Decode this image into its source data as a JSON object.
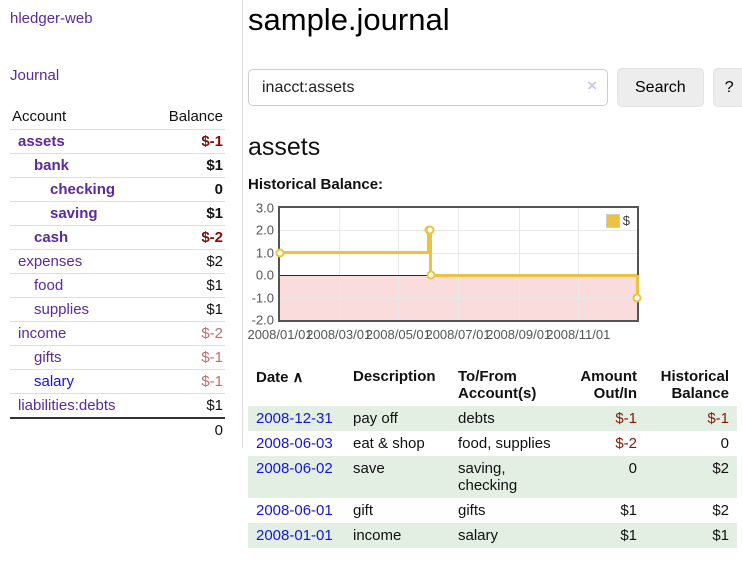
{
  "app": {
    "brand": "hledger-web"
  },
  "sidebar": {
    "journal_link": "Journal",
    "table": {
      "headers": [
        "Account",
        "Balance"
      ],
      "accounts": [
        {
          "name": "assets",
          "balance": "$-1"
        },
        {
          "name": "bank",
          "balance": "$1"
        },
        {
          "name": "checking",
          "balance": "0"
        },
        {
          "name": "saving",
          "balance": "$1"
        },
        {
          "name": "cash",
          "balance": "$-2"
        },
        {
          "name": "expenses",
          "balance": "$2"
        },
        {
          "name": "food",
          "balance": "$1"
        },
        {
          "name": "supplies",
          "balance": "$1"
        },
        {
          "name": "income",
          "balance": "$-2"
        },
        {
          "name": "gifts",
          "balance": "$-1"
        },
        {
          "name": "salary",
          "balance": "$-1"
        },
        {
          "name": "liabilities:debts",
          "balance": "$1"
        }
      ],
      "total": "0"
    }
  },
  "header": {
    "title": "sample.journal"
  },
  "search": {
    "value": "inacct:assets",
    "clear_icon": "×",
    "button_label": "Search",
    "help_label": "?"
  },
  "account_page": {
    "title": "assets",
    "chart_title": "Historical Balance:"
  },
  "chart_data": {
    "type": "line",
    "step": true,
    "title": "Historical Balance:",
    "series": [
      {
        "name": "$",
        "color": "#edc240",
        "points": [
          [
            "2008-01-01",
            1
          ],
          [
            "2008-06-01",
            2
          ],
          [
            "2008-06-02",
            2
          ],
          [
            "2008-06-03",
            0
          ],
          [
            "2008-12-31",
            -1
          ]
        ]
      }
    ],
    "xlim": [
      "2008-01-01",
      "2008-12-31"
    ],
    "ylim": [
      -2,
      3
    ],
    "x_ticks": [
      "2008/01/01",
      "2008/03/01",
      "2008/05/01",
      "2008/07/01",
      "2008/09/01",
      "2008/11/01"
    ],
    "y_ticks": [
      "3.0",
      "2.0",
      "1.0",
      "0.0",
      "-1.0",
      "-2.0"
    ],
    "grid": true,
    "legend_position": "top-right",
    "negative_region_color": "#fbdcdc",
    "zero_line_color": "#8b0000"
  },
  "register": {
    "sort_icon": "∧",
    "headers": [
      "Date",
      "Description",
      "To/From Account(s)",
      "Amount Out/In",
      "Historical Balance"
    ],
    "rows": [
      {
        "date": "2008-12-31",
        "description": "pay off",
        "accounts": "debts",
        "amount": "$-1",
        "balance": "$-1"
      },
      {
        "date": "2008-06-03",
        "description": "eat & shop",
        "accounts": "food, supplies",
        "amount": "$-2",
        "balance": "0"
      },
      {
        "date": "2008-06-02",
        "description": "save",
        "accounts": "saving, checking",
        "amount": "0",
        "balance": "$2"
      },
      {
        "date": "2008-06-01",
        "description": "gift",
        "accounts": "gifts",
        "amount": "$1",
        "balance": "$2"
      },
      {
        "date": "2008-01-01",
        "description": "income",
        "accounts": "salary",
        "amount": "$1",
        "balance": "$1"
      }
    ]
  },
  "colors": {
    "link_purple": "#5b2a9b",
    "link_blue": "#1414e0",
    "negative_strong": "#7d0d06",
    "negative_soft": "#bd6e6e",
    "register_negative": "#8a1506",
    "row_stripe_green": "#e2efe2",
    "series_gold": "#edc240",
    "chart_negative_bg": "#fbdcdc",
    "zero_line": "#8b0000",
    "chart_border": "#545454"
  }
}
